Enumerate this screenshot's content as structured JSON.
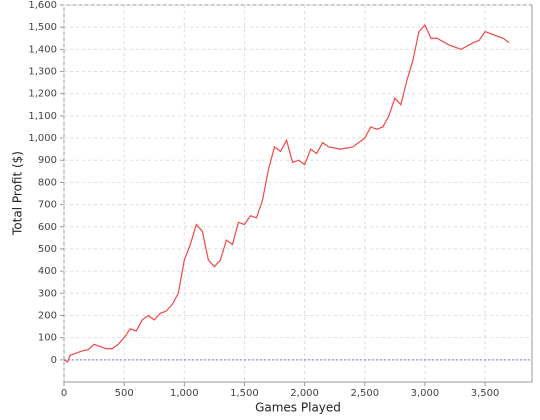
{
  "chart_data": {
    "type": "line",
    "x_label": "Games Played",
    "y_label": "Total Profit ($)",
    "x": [
      0,
      30,
      50,
      100,
      150,
      200,
      250,
      300,
      350,
      400,
      450,
      500,
      550,
      600,
      650,
      700,
      750,
      800,
      850,
      900,
      950,
      1000,
      1050,
      1100,
      1150,
      1200,
      1250,
      1300,
      1350,
      1400,
      1450,
      1500,
      1550,
      1600,
      1650,
      1700,
      1750,
      1800,
      1850,
      1900,
      1950,
      2000,
      2050,
      2100,
      2150,
      2200,
      2300,
      2400,
      2500,
      2550,
      2600,
      2650,
      2700,
      2750,
      2800,
      2850,
      2900,
      2950,
      3000,
      3050,
      3100,
      3200,
      3300,
      3400,
      3450,
      3500,
      3550,
      3600,
      3650,
      3700
    ],
    "series": [
      {
        "name": "Total Profit",
        "color": "#f04848",
        "values": [
          0,
          -10,
          20,
          30,
          40,
          45,
          70,
          60,
          50,
          50,
          70,
          100,
          140,
          130,
          180,
          200,
          180,
          210,
          220,
          250,
          300,
          450,
          520,
          610,
          580,
          450,
          420,
          450,
          540,
          520,
          620,
          610,
          650,
          640,
          720,
          860,
          960,
          940,
          990,
          890,
          900,
          880,
          950,
          930,
          980,
          960,
          950,
          960,
          1000,
          1050,
          1040,
          1050,
          1100,
          1180,
          1150,
          1260,
          1350,
          1480,
          1510,
          1450,
          1450,
          1420,
          1400,
          1430,
          1440,
          1480,
          1470,
          1460,
          1450,
          1430
        ]
      }
    ],
    "xlim": [
      0,
      3890
    ],
    "ylim": [
      -100,
      1600
    ],
    "xticks": [
      0,
      500,
      {
        "value": 1000,
        "label": "1,000"
      },
      {
        "value": 1500,
        "label": "1,500"
      },
      {
        "value": 2000,
        "label": "2,000"
      },
      {
        "value": 2500,
        "label": "2,500"
      },
      {
        "value": 3000,
        "label": "3,000"
      },
      {
        "value": 3500,
        "label": "3,500"
      }
    ],
    "yticks": [
      0,
      100,
      200,
      300,
      400,
      500,
      600,
      700,
      800,
      900,
      {
        "value": 1000,
        "label": "1,000"
      },
      {
        "value": 1100,
        "label": "1,100"
      },
      {
        "value": 1200,
        "label": "1,200"
      },
      {
        "value": 1300,
        "label": "1,300"
      },
      {
        "value": 1400,
        "label": "1,400"
      },
      {
        "value": 1500,
        "label": "1,500"
      },
      {
        "value": 1600,
        "label": "1,600"
      }
    ],
    "grid": true,
    "zero_line_color": "#7b7bd9"
  }
}
